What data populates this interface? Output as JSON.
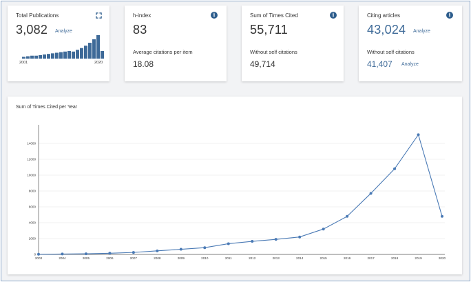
{
  "cards": {
    "total_publications": {
      "title": "Total Publications",
      "value": "3,082",
      "action": "Analyze",
      "spark_start": "2001",
      "spark_end": "2020",
      "spark_values": [
        3,
        4,
        5,
        5,
        6,
        7,
        8,
        9,
        10,
        11,
        12,
        13,
        12,
        15,
        18,
        22,
        27,
        33,
        40,
        13
      ]
    },
    "h_index": {
      "title": "h-index",
      "value": "83",
      "sub_label": "Average citations per item",
      "sub_value": "18.08"
    },
    "times_cited": {
      "title": "Sum of Times Cited",
      "value": "55,711",
      "sub_label": "Without self citations",
      "sub_value": "49,714"
    },
    "citing_articles": {
      "title": "Citing articles",
      "value": "43,024",
      "action": "Analyze",
      "sub_label": "Without self citations",
      "sub_value": "41,407",
      "sub_action": "Analyze"
    }
  },
  "info_glyph": "i",
  "chart_data": {
    "type": "line",
    "title": "Sum of Times Cited per Year",
    "x": [
      "2003",
      "2004",
      "2005",
      "2006",
      "2007",
      "2008",
      "2009",
      "2010",
      "2011",
      "2012",
      "2013",
      "2014",
      "2015",
      "2016",
      "2017",
      "2018",
      "2019",
      "2020"
    ],
    "values": [
      20,
      50,
      80,
      150,
      250,
      450,
      650,
      850,
      1350,
      1650,
      1900,
      2200,
      3200,
      4800,
      7700,
      10800,
      15100,
      4800
    ],
    "yticks": [
      "0",
      "2000",
      "4000",
      "6000",
      "8000",
      "10000",
      "12000",
      "14000"
    ],
    "ylim": [
      0,
      16000
    ],
    "grid": true,
    "color": "#4a7ab5"
  }
}
